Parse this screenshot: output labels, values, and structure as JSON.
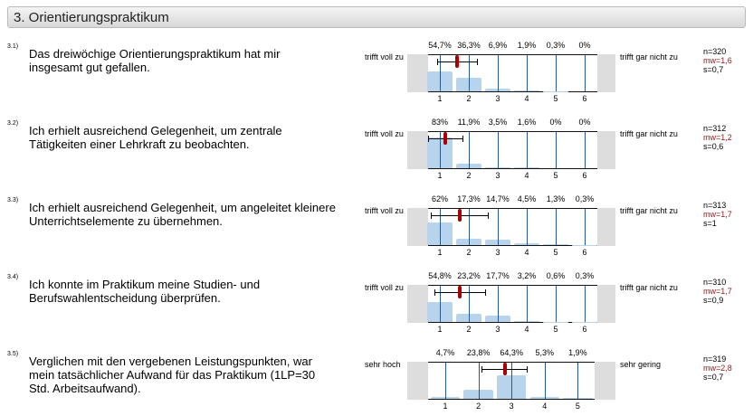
{
  "section_title": "3. Orientierungspraktikum",
  "colors": {
    "bar": "#b8d4ec",
    "mean_marker": "#aa0000",
    "gridline": "#2a5a8a"
  },
  "questions": [
    {
      "num": "3.1)",
      "text": "Das dreiwöchige Orientierungspraktikum hat mir insgesamt gut gefallen.",
      "left": "trifft voll zu",
      "right": "trifft gar nicht zu",
      "pcts": [
        "54,7%",
        "36,3%",
        "6,9%",
        "1,9%",
        "0,3%",
        "0%"
      ],
      "vals": [
        54.7,
        36.3,
        6.9,
        1.9,
        0.3,
        0
      ],
      "ticks": [
        "1",
        "2",
        "3",
        "4",
        "5",
        "6"
      ],
      "n": "n=320",
      "mw": "mw=1,6",
      "s": "s=0,7",
      "mean": 1.6,
      "sd": 0.7
    },
    {
      "num": "3.2)",
      "text": "Ich erhielt ausreichend Gelegenheit, um zentrale Tätigkeiten einer Lehrkraft zu beobachten.",
      "left": "trifft voll zu",
      "right": "trifft gar nicht zu",
      "pcts": [
        "83%",
        "11,9%",
        "3,5%",
        "1,6%",
        "0%",
        "0%"
      ],
      "vals": [
        83,
        11.9,
        3.5,
        1.6,
        0,
        0
      ],
      "ticks": [
        "1",
        "2",
        "3",
        "4",
        "5",
        "6"
      ],
      "n": "n=312",
      "mw": "mw=1,2",
      "s": "s=0,6",
      "mean": 1.2,
      "sd": 0.6
    },
    {
      "num": "3.3)",
      "text": "Ich erhielt ausreichend Gelegenheit, um angeleitet kleinere Unterrichtselemente zu übernehmen.",
      "left": "trifft voll zu",
      "right": "trifft gar nicht zu",
      "pcts": [
        "62%",
        "17,3%",
        "14,7%",
        "4,5%",
        "1,3%",
        "0,3%"
      ],
      "vals": [
        62,
        17.3,
        14.7,
        4.5,
        1.3,
        0.3
      ],
      "ticks": [
        "1",
        "2",
        "3",
        "4",
        "5",
        "6"
      ],
      "n": "n=313",
      "mw": "mw=1,7",
      "s": "s=1",
      "mean": 1.7,
      "sd": 1
    },
    {
      "num": "3.4)",
      "text": "Ich konnte im Praktikum meine Studien- und Berufswahlentscheidung überprüfen.",
      "left": "trifft voll zu",
      "right": "trifft gar nicht zu",
      "pcts": [
        "54,8%",
        "23,2%",
        "17,7%",
        "3,2%",
        "0,6%",
        "0,3%"
      ],
      "vals": [
        54.8,
        23.2,
        17.7,
        3.2,
        0.6,
        0.3
      ],
      "ticks": [
        "1",
        "2",
        "3",
        "4",
        "5",
        "6"
      ],
      "n": "n=310",
      "mw": "mw=1,7",
      "s": "s=0,9",
      "mean": 1.7,
      "sd": 0.9
    },
    {
      "num": "3.5)",
      "text": "Verglichen mit den vergebenen Leistungspunkten, war mein tatsächlicher Aufwand für das Praktikum (1LP=30 Std. Arbeitsaufwand).",
      "left": "sehr hoch",
      "right": "sehr gering",
      "pcts": [
        "4,7%",
        "23,8%",
        "64,3%",
        "5,3%",
        "1,9%"
      ],
      "vals": [
        4.7,
        23.8,
        64.3,
        5.3,
        1.9
      ],
      "ticks": [
        "1",
        "2",
        "3",
        "4",
        "5"
      ],
      "n": "n=319",
      "mw": "mw=2,8",
      "s": "s=0,7",
      "mean": 2.8,
      "sd": 0.7
    }
  ]
}
